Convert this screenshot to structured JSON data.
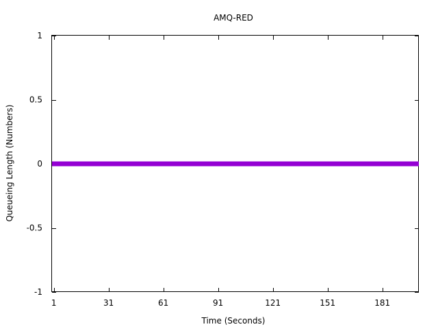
{
  "chart_data": {
    "type": "line",
    "title": "AMQ-RED",
    "xlabel": "Time (Seconds)",
    "ylabel": "Queueing Length (Numbers)",
    "xlim": [
      0,
      201
    ],
    "ylim": [
      -1,
      1
    ],
    "xticks": [
      1,
      31,
      61,
      91,
      121,
      151,
      181
    ],
    "xtick_labels": [
      "1",
      "31",
      "61",
      "91",
      "121",
      "151",
      "181"
    ],
    "yticks": [
      1,
      0.5,
      0,
      -0.5,
      -1
    ],
    "ytick_labels": [
      "1",
      "0.5",
      "0",
      "-0.5",
      "-1"
    ],
    "grid": false,
    "legend": "none",
    "series": [
      {
        "color": "#9400d3",
        "x": [
          0,
          201
        ],
        "y": [
          0,
          0
        ]
      }
    ]
  }
}
